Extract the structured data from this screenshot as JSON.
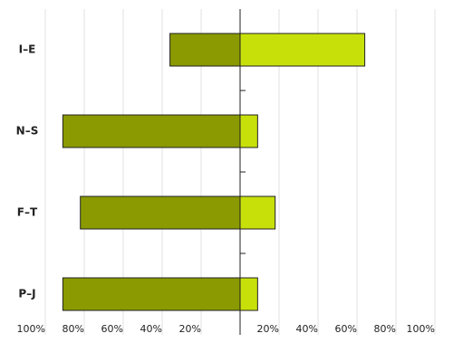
{
  "chart_data": {
    "type": "bar",
    "orientation": "horizontal",
    "categories": [
      "I–E",
      "N–S",
      "F–T",
      "P–J"
    ],
    "series": [
      {
        "color": "#8a9a00",
        "values": [
          -36,
          -91,
          -82,
          -91
        ]
      },
      {
        "color": "#c8e00a",
        "values": [
          64,
          9,
          18,
          9
        ]
      }
    ],
    "xlim": [
      -100,
      100
    ],
    "xticks": [
      {
        "value": -100,
        "label": "100%"
      },
      {
        "value": -80,
        "label": "80%"
      },
      {
        "value": -60,
        "label": "60%"
      },
      {
        "value": -40,
        "label": "40%"
      },
      {
        "value": -20,
        "label": "20%"
      },
      {
        "value": 0,
        "label": null
      },
      {
        "value": 20,
        "label": "20%"
      },
      {
        "value": 40,
        "label": "40%"
      },
      {
        "value": 60,
        "label": "60%"
      },
      {
        "value": 80,
        "label": "80%"
      },
      {
        "value": 100,
        "label": "100%"
      }
    ],
    "grid": true
  }
}
